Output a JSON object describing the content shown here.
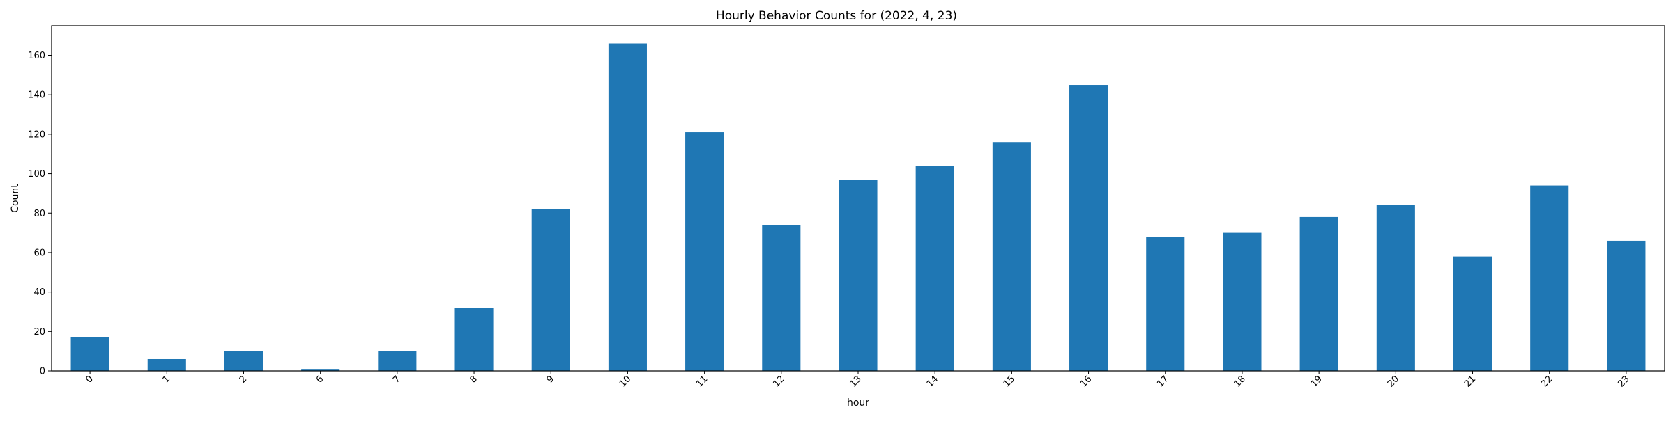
{
  "chart_data": {
    "type": "bar",
    "title": "Hourly Behavior Counts for (2022, 4, 23)",
    "xlabel": "hour",
    "ylabel": "Count",
    "categories": [
      "0",
      "1",
      "2",
      "6",
      "7",
      "8",
      "9",
      "10",
      "11",
      "12",
      "13",
      "14",
      "15",
      "16",
      "17",
      "18",
      "19",
      "20",
      "21",
      "22",
      "23"
    ],
    "values": [
      17,
      6,
      10,
      1,
      10,
      32,
      82,
      166,
      121,
      74,
      97,
      104,
      116,
      145,
      68,
      70,
      78,
      84,
      58,
      94,
      66
    ],
    "ylim": [
      0,
      175
    ],
    "yticks": [
      "0",
      "20",
      "40",
      "60",
      "80",
      "100",
      "120",
      "140",
      "160"
    ],
    "ytick_values": [
      0,
      20,
      40,
      60,
      80,
      100,
      120,
      140,
      160
    ],
    "bar_color": "#1f77b4",
    "grid": false,
    "legend": "none"
  }
}
